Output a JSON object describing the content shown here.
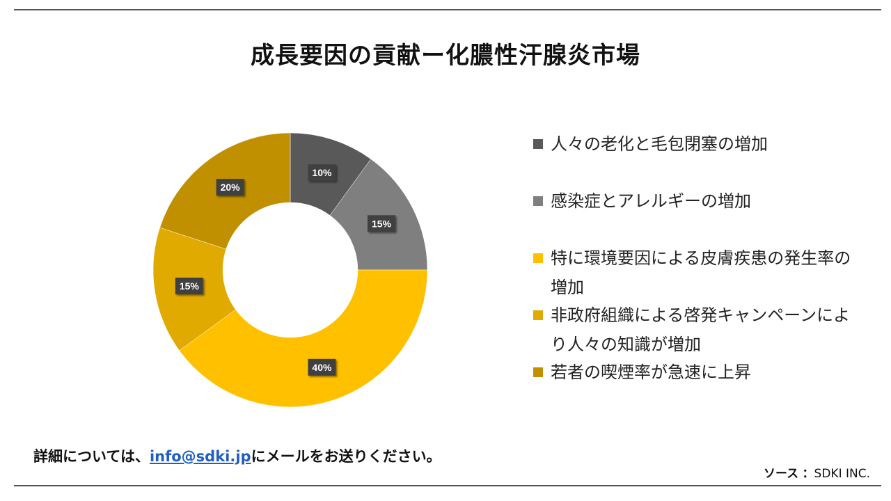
{
  "page": {
    "title": "成長要因の貢献ー化膿性汗腺炎市場"
  },
  "chart_data": {
    "type": "pie",
    "style": "donut",
    "legend_position": "right",
    "series": [
      {
        "name": "人々の老化と毛包閉塞の増加",
        "value": 10,
        "label": "10%",
        "color": "#595959"
      },
      {
        "name": "感染症とアレルギーの増加",
        "value": 15,
        "label": "15%",
        "color": "#7f7f7f"
      },
      {
        "name": "特に環境要因による皮膚疾患の発生率の増加",
        "value": 40,
        "label": "40%",
        "color": "#ffc000"
      },
      {
        "name": "非政府組織による啓発キャンペーンにより人々の知識が増加",
        "value": 15,
        "label": "15%",
        "color": "#e0aa00"
      },
      {
        "name": "若者の喫煙率が急速に上昇",
        "value": 20,
        "label": "20%",
        "color": "#c09000"
      }
    ]
  },
  "footer": {
    "prefix": "詳細については、",
    "email": "info@sdki.jp",
    "suffix": "にメールをお送りください。",
    "source_label": "ソース",
    "source_sep": "：",
    "source_value": "SDKI INC."
  }
}
